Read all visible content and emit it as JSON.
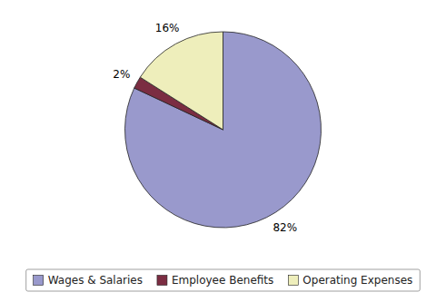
{
  "chart_data": {
    "type": "pie",
    "categories": [
      "Wages & Salaries",
      "Employee Benefits",
      "Operating Expenses"
    ],
    "values": [
      82,
      2,
      16
    ],
    "value_labels": [
      "82%",
      "2%",
      "16%"
    ],
    "colors": [
      "#9999CC",
      "#7B2D42",
      "#EEEEBB"
    ],
    "data_labels": true,
    "legend": "bottom"
  }
}
